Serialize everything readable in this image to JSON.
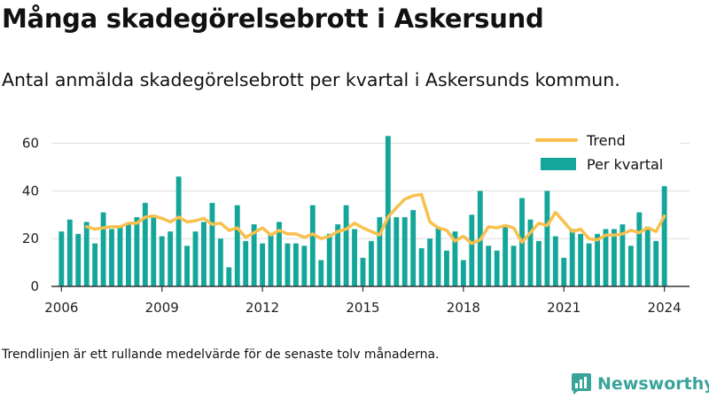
{
  "title": "Många skadegörelsebrott i Askersund",
  "subtitle": "Antal anmälda skadegörelsebrott per kvartal i Askersunds kommun.",
  "note": "Trendlinjen är ett rullande medelvärde för de senaste tolv månaderna.",
  "brand": {
    "name": "Newsworthy",
    "logo_icon": "bar-chart-speech-bubble-icon"
  },
  "colors": {
    "bars": "#14a69a",
    "trend": "#f9c04d",
    "axis": "#333333",
    "grid": "#dddddd"
  },
  "chart_data": {
    "type": "bar",
    "title": "Många skadegörelsebrott i Askersund",
    "xlabel": "",
    "ylabel": "",
    "ylim": [
      0,
      65
    ],
    "yticks": [
      0,
      20,
      40,
      60
    ],
    "xlim": [
      2005.7,
      2024.75
    ],
    "xticks": [
      "2006",
      "2009",
      "2012",
      "2015",
      "2018",
      "2021",
      "2024"
    ],
    "grid": true,
    "legend_position": "top-right",
    "series": [
      {
        "name": "Per kvartal",
        "kind": "bar",
        "color": "#14a69a",
        "x": [
          "2006 Q1",
          "2006 Q2",
          "2006 Q3",
          "2006 Q4",
          "2007 Q1",
          "2007 Q2",
          "2007 Q3",
          "2007 Q4",
          "2008 Q1",
          "2008 Q2",
          "2008 Q3",
          "2008 Q4",
          "2009 Q1",
          "2009 Q2",
          "2009 Q3",
          "2009 Q4",
          "2010 Q1",
          "2010 Q2",
          "2010 Q3",
          "2010 Q4",
          "2011 Q1",
          "2011 Q2",
          "2011 Q3",
          "2011 Q4",
          "2012 Q1",
          "2012 Q2",
          "2012 Q3",
          "2012 Q4",
          "2013 Q1",
          "2013 Q2",
          "2013 Q3",
          "2013 Q4",
          "2014 Q1",
          "2014 Q2",
          "2014 Q3",
          "2014 Q4",
          "2015 Q1",
          "2015 Q2",
          "2015 Q3",
          "2015 Q4",
          "2016 Q1",
          "2016 Q2",
          "2016 Q3",
          "2016 Q4",
          "2017 Q1",
          "2017 Q2",
          "2017 Q3",
          "2017 Q4",
          "2018 Q1",
          "2018 Q2",
          "2018 Q3",
          "2018 Q4",
          "2019 Q1",
          "2019 Q2",
          "2019 Q3",
          "2019 Q4",
          "2020 Q1",
          "2020 Q2",
          "2020 Q3",
          "2020 Q4",
          "2021 Q1",
          "2021 Q2",
          "2021 Q3",
          "2021 Q4",
          "2022 Q1",
          "2022 Q2",
          "2022 Q3",
          "2022 Q4",
          "2023 Q1",
          "2023 Q2",
          "2023 Q3",
          "2023 Q4",
          "2024 Q1"
        ],
        "values": [
          23,
          28,
          22,
          27,
          18,
          31,
          24,
          25,
          26,
          29,
          35,
          30,
          21,
          23,
          46,
          17,
          23,
          27,
          35,
          20,
          8,
          34,
          19,
          26,
          18,
          22,
          27,
          18,
          18,
          17,
          34,
          11,
          22,
          26,
          34,
          24,
          12,
          19,
          29,
          63,
          29,
          29,
          32,
          16,
          20,
          25,
          15,
          23,
          11,
          30,
          40,
          17,
          15,
          25,
          17,
          37,
          28,
          19,
          40,
          21,
          12,
          24,
          22,
          18,
          22,
          24,
          24,
          26,
          17,
          31,
          25,
          19,
          42
        ]
      },
      {
        "name": "Trend",
        "kind": "line",
        "color": "#f9c04d",
        "x": [
          "2006 Q4",
          "2007 Q1",
          "2007 Q2",
          "2007 Q3",
          "2007 Q4",
          "2008 Q1",
          "2008 Q2",
          "2008 Q3",
          "2008 Q4",
          "2009 Q1",
          "2009 Q2",
          "2009 Q3",
          "2009 Q4",
          "2010 Q1",
          "2010 Q2",
          "2010 Q3",
          "2010 Q4",
          "2011 Q1",
          "2011 Q2",
          "2011 Q3",
          "2011 Q4",
          "2012 Q1",
          "2012 Q2",
          "2012 Q3",
          "2012 Q4",
          "2013 Q1",
          "2013 Q2",
          "2013 Q3",
          "2013 Q4",
          "2014 Q1",
          "2014 Q2",
          "2014 Q3",
          "2014 Q4",
          "2015 Q1",
          "2015 Q2",
          "2015 Q3",
          "2015 Q4",
          "2016 Q1",
          "2016 Q2",
          "2016 Q3",
          "2016 Q4",
          "2017 Q1",
          "2017 Q2",
          "2017 Q3",
          "2017 Q4",
          "2018 Q1",
          "2018 Q2",
          "2018 Q3",
          "2018 Q4",
          "2019 Q1",
          "2019 Q2",
          "2019 Q3",
          "2019 Q4",
          "2020 Q1",
          "2020 Q2",
          "2020 Q3",
          "2020 Q4",
          "2021 Q1",
          "2021 Q2",
          "2021 Q3",
          "2021 Q4",
          "2022 Q1",
          "2022 Q2",
          "2022 Q3",
          "2022 Q4",
          "2023 Q1",
          "2023 Q2",
          "2023 Q3",
          "2023 Q4",
          "2024 Q1"
        ],
        "values": [
          25,
          24,
          24.5,
          25,
          25,
          26.5,
          26.5,
          29,
          29.5,
          28.5,
          27,
          29,
          27,
          27.5,
          28.5,
          26,
          26.5,
          23.5,
          24.5,
          20.5,
          22.5,
          24.5,
          21.5,
          23.5,
          22,
          22,
          20.5,
          22,
          20,
          21,
          23,
          24,
          26.5,
          24.5,
          23,
          21.5,
          29,
          33,
          36.5,
          38,
          38.5,
          27,
          24.5,
          23.5,
          19,
          21,
          18,
          19.5,
          25,
          24.5,
          25.5,
          24.5,
          18.5,
          22.5,
          26.5,
          25.5,
          31,
          27,
          23,
          24,
          20,
          19.5,
          21.5,
          21.5,
          22,
          23.5,
          22.5,
          24.5,
          23,
          29.5
        ]
      }
    ]
  }
}
